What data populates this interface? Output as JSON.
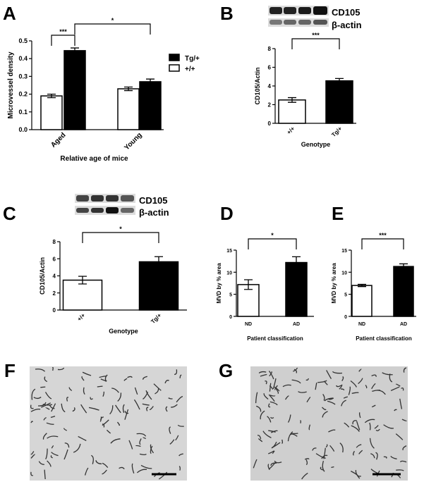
{
  "chart_data": [
    {
      "type": "bar",
      "panel": "A",
      "ylabel": "Microvessel density",
      "xlabel": "Relative age of mice",
      "categories": [
        "Aged",
        "Young"
      ],
      "series": [
        {
          "name": "+/+",
          "color": "#ffffff",
          "values": [
            0.19,
            0.23
          ],
          "errors": [
            0.01,
            0.01
          ]
        },
        {
          "name": "Tg/+",
          "color": "#000000",
          "values": [
            0.445,
            0.27
          ],
          "errors": [
            0.015,
            0.015
          ]
        }
      ],
      "ylim": [
        0,
        0.5
      ],
      "yticks": [
        {
          "value": 0,
          "label": "0.0"
        },
        0.1,
        0.2,
        0.3,
        0.4,
        0.5
      ],
      "annotations": [
        "***",
        "*"
      ]
    },
    {
      "type": "bar",
      "panel": "B",
      "ylabel": "CD105/Actin",
      "xlabel": "Genotype",
      "blot_labels": [
        "CD105",
        "β-actin"
      ],
      "categories": [
        "+/+",
        "Tg/+"
      ],
      "values": [
        2.5,
        4.55
      ],
      "errors": [
        0.25,
        0.25
      ],
      "colors": [
        "#ffffff",
        "#000000"
      ],
      "ylim": [
        0,
        8
      ],
      "yticks": [
        0,
        2,
        4,
        6,
        8
      ],
      "annotations": [
        "***"
      ]
    },
    {
      "type": "bar",
      "panel": "C",
      "ylabel": "CD105/Actin",
      "xlabel": "Genotype",
      "blot_labels": [
        "CD105",
        "β-actin"
      ],
      "categories": [
        "+/+",
        "Tg/+"
      ],
      "values": [
        3.5,
        5.65
      ],
      "errors": [
        0.45,
        0.6
      ],
      "colors": [
        "#ffffff",
        "#000000"
      ],
      "ylim": [
        0,
        8
      ],
      "yticks": [
        0,
        2,
        4,
        6,
        8
      ],
      "annotations": [
        "*"
      ]
    },
    {
      "type": "bar",
      "panel": "D",
      "ylabel": "MVD by % area",
      "xlabel": "Patient classification",
      "categories": [
        "ND",
        "AD"
      ],
      "values": [
        7.2,
        12.2
      ],
      "errors": [
        1.1,
        1.3
      ],
      "colors": [
        "#ffffff",
        "#000000"
      ],
      "ylim": [
        0,
        15
      ],
      "yticks": [
        0,
        5,
        10,
        15
      ],
      "annotations": [
        "*"
      ]
    },
    {
      "type": "bar",
      "panel": "E",
      "ylabel": "MVD by % area",
      "xlabel": "Patient classification",
      "categories": [
        "ND",
        "AD"
      ],
      "values": [
        7.0,
        11.3
      ],
      "errors": [
        0.25,
        0.6
      ],
      "colors": [
        "#ffffff",
        "#000000"
      ],
      "ylim": [
        0,
        15
      ],
      "yticks": [
        0,
        5,
        10,
        15
      ],
      "annotations": [
        "***"
      ]
    }
  ],
  "images": [
    {
      "panel": "F"
    },
    {
      "panel": "G"
    }
  ]
}
